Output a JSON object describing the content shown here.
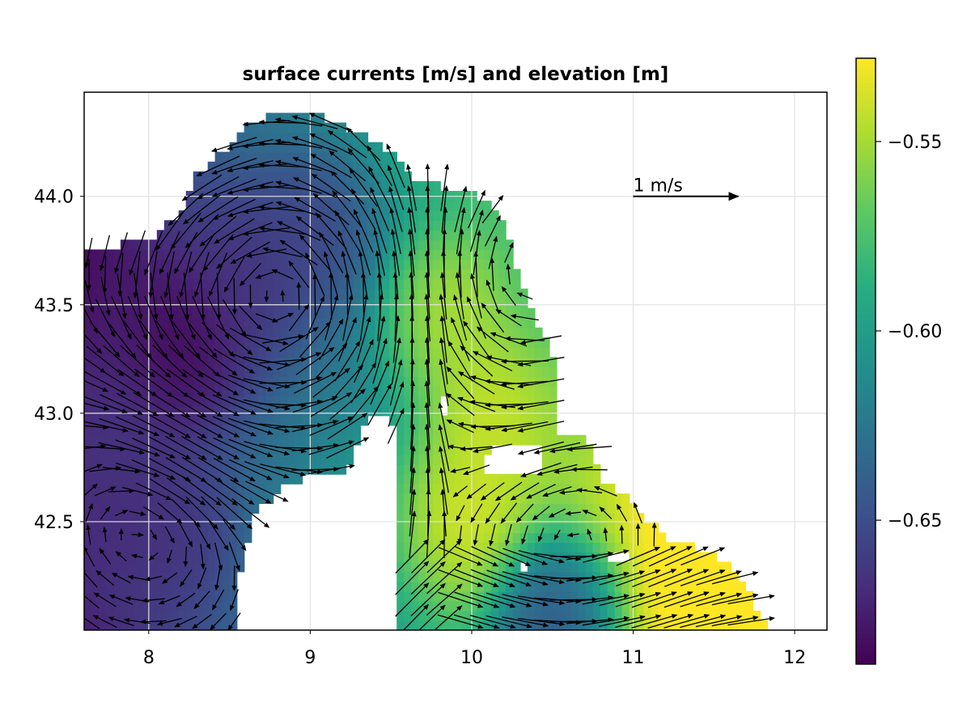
{
  "chart_data": {
    "type": "heatmap",
    "title": "surface currents [m/s] and elevation [m]",
    "xlabel": "",
    "ylabel": "",
    "xlim": [
      7.6,
      12.2
    ],
    "ylim": [
      42.0,
      44.48
    ],
    "x_ticks": [
      "8",
      "9",
      "10",
      "11",
      "12"
    ],
    "x_tick_values": [
      8,
      9,
      10,
      11,
      12
    ],
    "y_ticks": [
      "42.5",
      "43.0",
      "43.5",
      "44.0"
    ],
    "y_tick_values": [
      42.5,
      43.0,
      43.5,
      44.0
    ],
    "grid": true,
    "colormap": "viridis",
    "colorbar": {
      "range": [
        -0.688,
        -0.528
      ],
      "ticks": [
        "−0.65",
        "−0.60",
        "−0.55"
      ],
      "tick_values": [
        -0.65,
        -0.6,
        -0.55
      ]
    },
    "elevation_features": [
      {
        "lon": 8.2,
        "lat": 43.3,
        "value": -0.688
      },
      {
        "lon": 7.8,
        "lat": 43.3,
        "value": -0.675
      },
      {
        "lon": 8.6,
        "lat": 43.65,
        "value": -0.668
      },
      {
        "lon": 9.0,
        "lat": 43.85,
        "value": -0.66
      },
      {
        "lon": 7.8,
        "lat": 42.55,
        "value": -0.67
      },
      {
        "lon": 8.15,
        "lat": 42.45,
        "value": -0.668
      },
      {
        "lon": 7.7,
        "lat": 42.95,
        "value": -0.66
      },
      {
        "lon": 10.5,
        "lat": 42.05,
        "value": -0.665
      },
      {
        "lon": 9.95,
        "lat": 42.52,
        "value": -0.53
      },
      {
        "lon": 10.1,
        "lat": 43.0,
        "value": -0.532
      },
      {
        "lon": 9.85,
        "lat": 43.45,
        "value": -0.535
      },
      {
        "lon": 11.5,
        "lat": 42.2,
        "value": -0.528
      }
    ],
    "reference_arrow": {
      "label": "1 m/s",
      "lon": 11.0,
      "lat": 44.0,
      "u": 1.0
    },
    "annotations": [
      "1 m/s"
    ]
  },
  "colors": {
    "land": "#ffffff",
    "arrow": "#000000",
    "grid": "#e2e2e2"
  }
}
